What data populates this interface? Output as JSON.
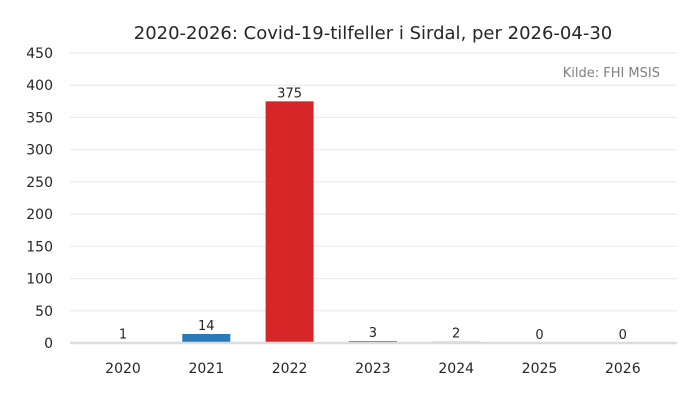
{
  "chart_data": {
    "type": "bar",
    "title": "2020-2026: Covid-19-tilfeller i Sirdal, per 2026-04-30",
    "source": "Kilde: FHI MSIS",
    "categories": [
      "2020",
      "2021",
      "2022",
      "2023",
      "2024",
      "2025",
      "2026"
    ],
    "values": [
      1,
      14,
      375,
      3,
      2,
      0,
      0
    ],
    "bar_colors": [
      "#2a7ab9",
      "#2a7ab9",
      "#d62728",
      "#2a7ab9",
      "#2a7ab9",
      "#2a7ab9",
      "#2a7ab9"
    ],
    "xlabel": "",
    "ylabel": "",
    "ylim": [
      0,
      450
    ],
    "yticks": [
      0,
      50,
      100,
      150,
      200,
      250,
      300,
      350,
      400,
      450
    ],
    "grid": true
  }
}
